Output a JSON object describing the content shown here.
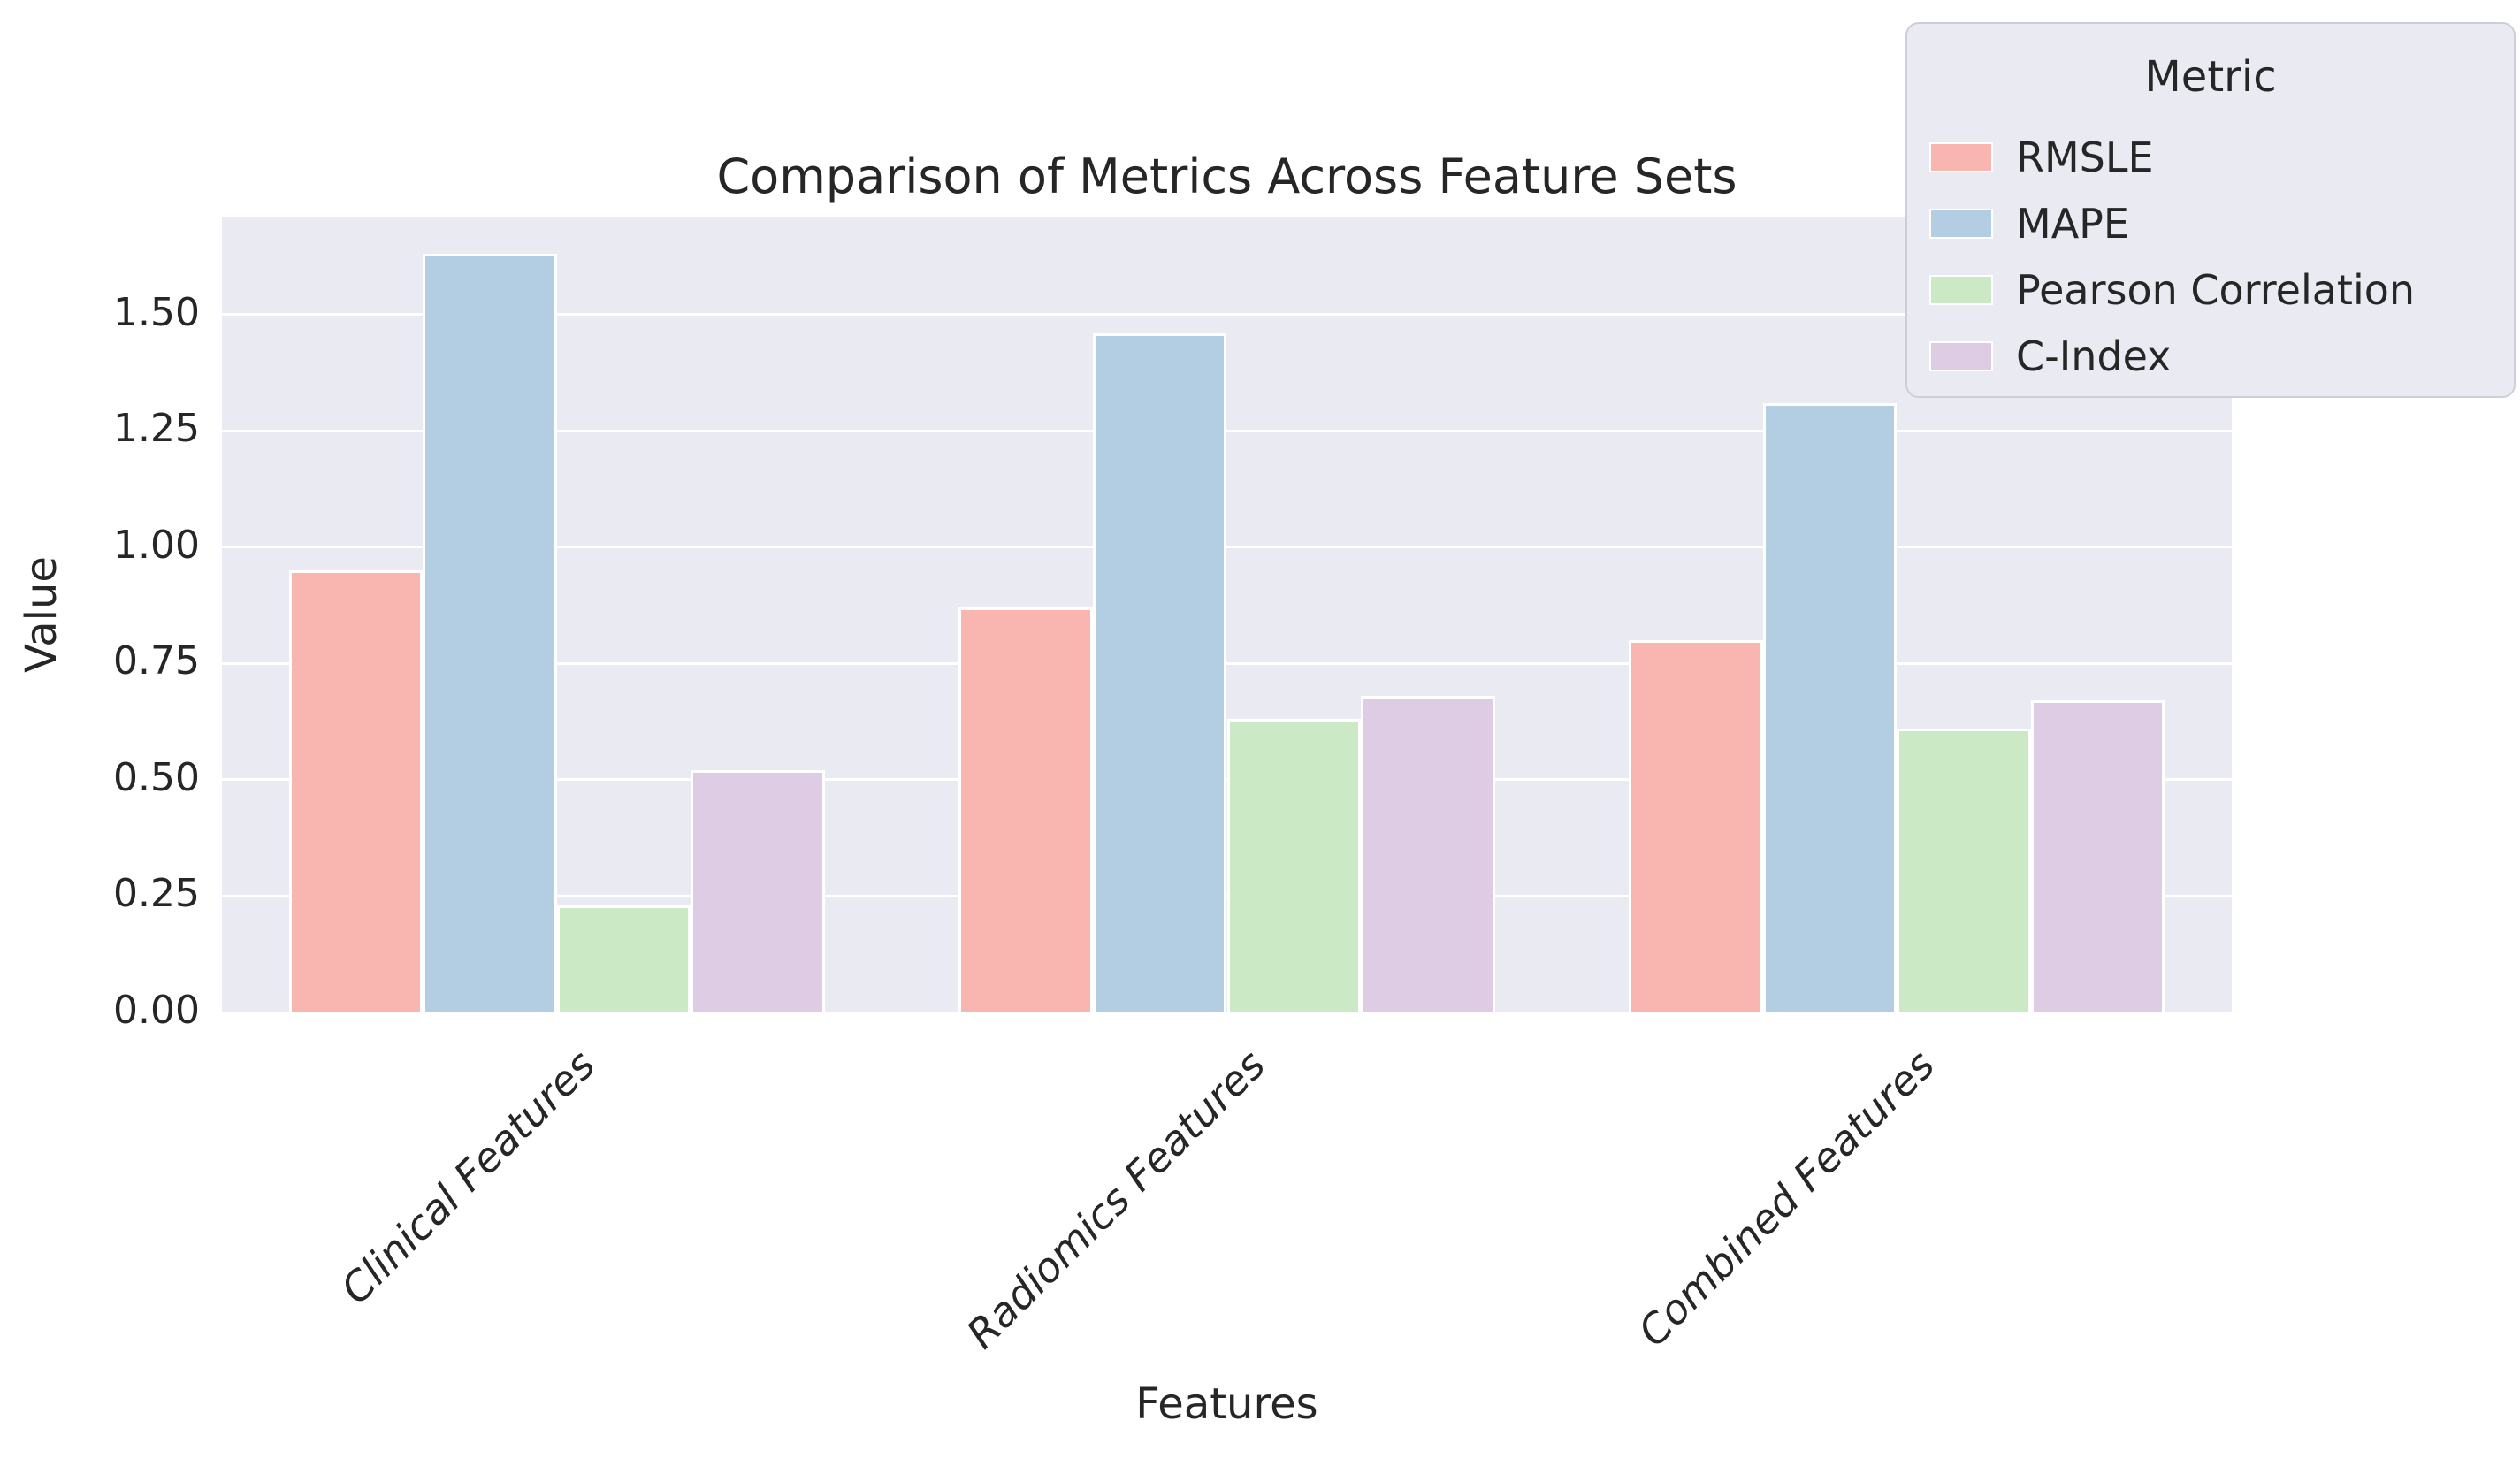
{
  "chart_data": {
    "type": "bar",
    "title": "Comparison of Metrics Across Feature Sets",
    "xlabel": "Features",
    "ylabel": "Value",
    "categories": [
      "Clinical Features",
      "Radiomics Features",
      "Combined Features"
    ],
    "series": [
      {
        "name": "RMSLE",
        "color": "#f9b5af",
        "values": [
          0.95,
          0.87,
          0.8
        ]
      },
      {
        "name": "MAPE",
        "color": "#b3cde3",
        "values": [
          1.63,
          1.46,
          1.31
        ]
      },
      {
        "name": "Pearson Correlation",
        "color": "#cce9c6",
        "values": [
          0.23,
          0.63,
          0.61
        ]
      },
      {
        "name": "C-Index",
        "color": "#ddcce3",
        "values": [
          0.52,
          0.68,
          0.67
        ]
      }
    ],
    "yticks": [
      "0.00",
      "0.25",
      "0.50",
      "0.75",
      "1.00",
      "1.25",
      "1.50"
    ],
    "ylim": [
      0,
      1.71
    ],
    "legend_title": "Metric",
    "legend_position": "upper right",
    "grid": true,
    "plot_background": "#eaeaf2",
    "gridline_color": "#ffffff",
    "text_color": "#262626",
    "bar_edge_color": "#ffffff"
  }
}
